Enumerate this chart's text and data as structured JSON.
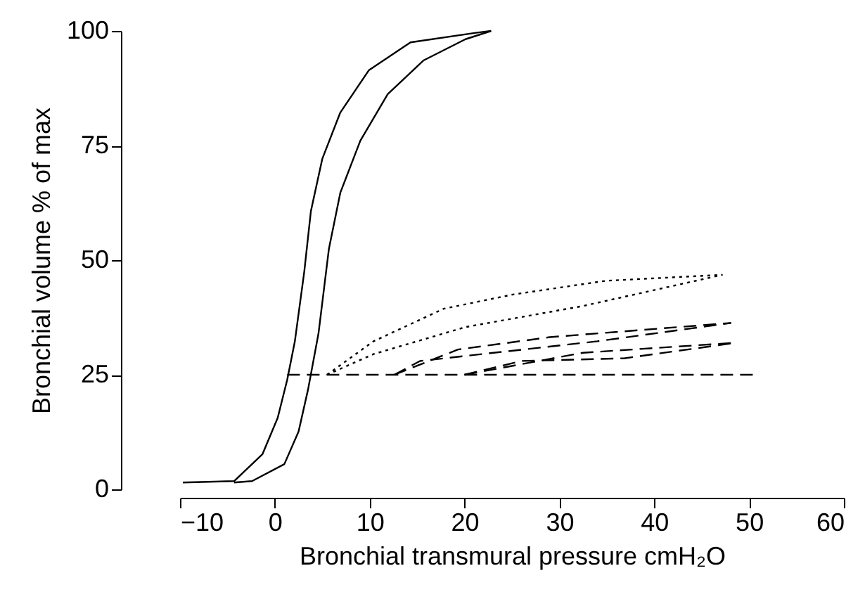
{
  "chart_data": {
    "type": "line",
    "xlabel": "Bronchial transmural pressure  cmH₂O",
    "ylabel": "Bronchial volume  % of max",
    "xlim": [
      -10,
      60
    ],
    "ylim": [
      0,
      100
    ],
    "xticks": [
      -10,
      0,
      10,
      20,
      30,
      40,
      50,
      60
    ],
    "yticks": [
      0,
      25,
      50,
      75,
      100
    ],
    "marker": "none",
    "series": [
      {
        "color": "#000000",
        "line_style": "solid",
        "x": [
          -9.7,
          -4.3,
          -1.3,
          0.3,
          1.3,
          2.1,
          3.1,
          3.8,
          5.0,
          6.9,
          9.9,
          14.3,
          21.2,
          22.8
        ],
        "values": [
          1.5,
          1.8,
          7.7,
          15.6,
          23.9,
          32.2,
          47.5,
          60.7,
          72.1,
          82.2,
          91.4,
          97.5,
          99.6,
          100
        ]
      },
      {
        "color": "#000000",
        "line_style": "solid",
        "x": [
          -4.3,
          -2.4,
          1.0,
          2.5,
          3.5,
          4.6,
          5.7,
          6.9,
          9.0,
          11.9,
          15.7,
          20.1,
          22.8
        ],
        "values": [
          1.5,
          1.8,
          5.5,
          12.6,
          21.8,
          34,
          52.5,
          64.7,
          76,
          86.2,
          93.6,
          98.2,
          100
        ]
      },
      {
        "color": "#000000",
        "line_style": "dashed",
        "x": [
          1.3,
          51
        ],
        "values": [
          25,
          25
        ]
      },
      {
        "color": "#000000",
        "line_style": "dotted",
        "x": [
          5.5,
          10.4,
          17.8,
          25.1,
          34.9,
          47.2
        ],
        "values": [
          25,
          32.3,
          39.4,
          42.5,
          45.5,
          46.8
        ]
      },
      {
        "color": "#000000",
        "line_style": "dotted",
        "x": [
          5.5,
          10.4,
          20.1,
          32.5,
          47.2
        ],
        "values": [
          25,
          29.5,
          35.4,
          40,
          46.8
        ]
      },
      {
        "color": "#000000",
        "line_style": "dashed",
        "x": [
          12.6,
          19.3,
          29,
          48.1
        ],
        "values": [
          25,
          30.5,
          33.2,
          36.3
        ]
      },
      {
        "color": "#000000",
        "line_style": "dashed",
        "x": [
          12.6,
          15.3,
          34,
          48.1
        ],
        "values": [
          25,
          28,
          32.3,
          36.3
        ]
      },
      {
        "color": "#000000",
        "line_style": "dashed",
        "x": [
          20,
          32.5,
          48.7
        ],
        "values": [
          25,
          29.8,
          32
        ]
      },
      {
        "color": "#000000",
        "line_style": "dashed",
        "x": [
          20,
          26,
          36.9,
          48.7
        ],
        "values": [
          25,
          28,
          28.6,
          32
        ]
      }
    ]
  }
}
